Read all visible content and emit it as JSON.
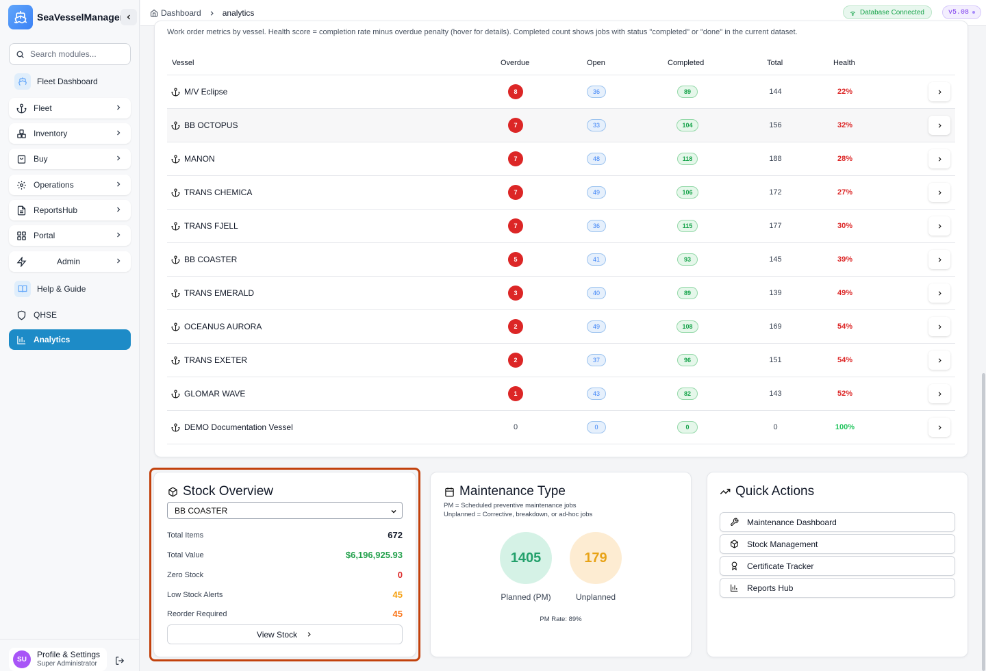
{
  "app": {
    "name": "SeaVesselManager"
  },
  "sidebar": {
    "search_placeholder": "Search modules...",
    "items": [
      {
        "label": "Fleet Dashboard"
      },
      {
        "label": "Fleet"
      },
      {
        "label": "Inventory"
      },
      {
        "label": "Buy"
      },
      {
        "label": "Operations"
      },
      {
        "label": "ReportsHub"
      },
      {
        "label": "Portal"
      },
      {
        "label": "Admin"
      },
      {
        "label": "Help & Guide"
      },
      {
        "label": "QHSE"
      },
      {
        "label": "Analytics"
      }
    ],
    "profile": {
      "initials": "SU",
      "name": "Profile & Settings",
      "role": "Super Administrator"
    }
  },
  "topbar": {
    "breadcrumb": {
      "home": "Dashboard",
      "current": "analytics"
    },
    "db_status": "Database Connected",
    "version": "v5.08"
  },
  "workorders": {
    "description": "Work order metrics by vessel. Health score = completion rate minus overdue penalty (hover for details). Completed count shows jobs with status \"completed\" or \"done\" in the current dataset.",
    "columns": [
      "Vessel",
      "Overdue",
      "Open",
      "Completed",
      "Total",
      "Health"
    ],
    "rows": [
      {
        "vessel": "M/V Eclipse",
        "overdue": "8",
        "open": "36",
        "completed": "89",
        "total": "144",
        "health": "22%"
      },
      {
        "vessel": "BB OCTOPUS",
        "overdue": "7",
        "open": "33",
        "completed": "104",
        "total": "156",
        "health": "32%"
      },
      {
        "vessel": "MANON",
        "overdue": "7",
        "open": "48",
        "completed": "118",
        "total": "188",
        "health": "28%"
      },
      {
        "vessel": "TRANS CHEMICA",
        "overdue": "7",
        "open": "49",
        "completed": "106",
        "total": "172",
        "health": "27%"
      },
      {
        "vessel": "TRANS FJELL",
        "overdue": "7",
        "open": "36",
        "completed": "115",
        "total": "177",
        "health": "30%"
      },
      {
        "vessel": "BB COASTER",
        "overdue": "5",
        "open": "41",
        "completed": "93",
        "total": "145",
        "health": "39%"
      },
      {
        "vessel": "TRANS EMERALD",
        "overdue": "3",
        "open": "40",
        "completed": "89",
        "total": "139",
        "health": "49%"
      },
      {
        "vessel": "OCEANUS AURORA",
        "overdue": "2",
        "open": "49",
        "completed": "108",
        "total": "169",
        "health": "54%"
      },
      {
        "vessel": "TRANS EXETER",
        "overdue": "2",
        "open": "37",
        "completed": "96",
        "total": "151",
        "health": "54%"
      },
      {
        "vessel": "GLOMAR WAVE",
        "overdue": "1",
        "open": "43",
        "completed": "82",
        "total": "143",
        "health": "52%"
      },
      {
        "vessel": "DEMO Documentation Vessel",
        "overdue": "0",
        "open": "0",
        "completed": "0",
        "total": "0",
        "health": "100%"
      }
    ]
  },
  "stock": {
    "title": "Stock Overview",
    "selected_vessel": "BB COASTER",
    "stats": [
      {
        "label": "Total Items",
        "value": "672",
        "color": "#111827"
      },
      {
        "label": "Total Value",
        "value": "$6,196,925.93",
        "color": "#22a04b"
      },
      {
        "label": "Zero Stock",
        "value": "0",
        "color": "#dc2626"
      },
      {
        "label": "Low Stock Alerts",
        "value": "45",
        "color": "#f59e0b"
      },
      {
        "label": "Reorder Required",
        "value": "45",
        "color": "#f97316"
      }
    ],
    "button": "View Stock"
  },
  "maintenance": {
    "title": "Maintenance Type",
    "notes": [
      "PM = Scheduled preventive maintenance jobs",
      "Unplanned = Corrective, breakdown, or ad-hoc jobs"
    ],
    "planned": {
      "value": "1405",
      "label": "Planned (PM)",
      "color": "#22a06b",
      "bg": "#d5f2e6"
    },
    "unplanned": {
      "value": "179",
      "label": "Unplanned",
      "color": "#e8a317",
      "bg": "#fdecd2"
    },
    "pm_rate": "PM Rate: 89%"
  },
  "quick_actions": {
    "title": "Quick Actions",
    "items": [
      {
        "label": "Maintenance Dashboard",
        "icon": "wrench-icon"
      },
      {
        "label": "Stock Management",
        "icon": "package-icon"
      },
      {
        "label": "Certificate Tracker",
        "icon": "award-icon"
      },
      {
        "label": "Reports Hub",
        "icon": "bar-chart-icon"
      }
    ]
  },
  "colors": {
    "accent": "#1d8bc7",
    "danger": "#dc2626",
    "success": "#16a34a",
    "highlight_outline": "#c2410c"
  }
}
